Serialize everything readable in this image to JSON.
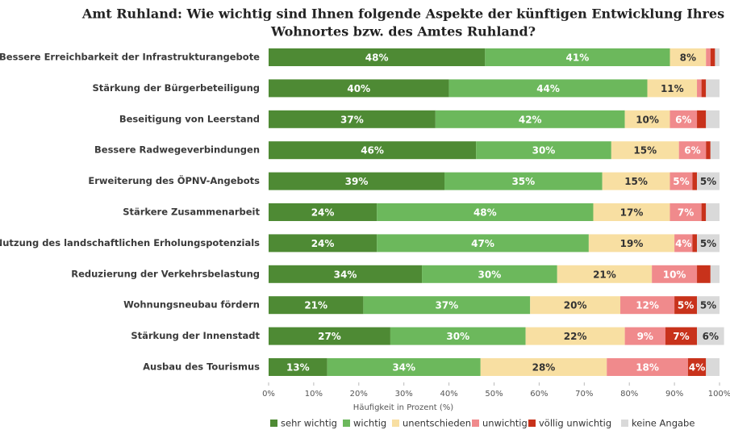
{
  "chart_data": {
    "type": "stacked-bar-horizontal",
    "title": [
      "Amt Ruhland: Wie wichtig sind Ihnen folgende Aspekte der künftigen Entwicklung Ihres",
      "Wohnortes bzw. des Amtes Ruhland?"
    ],
    "xlabel": "Häufigkeit in Prozent (%)",
    "categories": [
      "Bessere Erreichbarkeit der Infrastrukturangebote",
      "Stärkung der Bürgerbeteiligung",
      "Beseitigung von Leerstand",
      "Bessere Radwegeverbindungen",
      "Erweiterung des ÖPNV-Angebots",
      "Stärkere Zusammenarbeit",
      "Bessere Nutzung des landschaftlichen Erholungspotenzials",
      "Reduzierung der Verkehrsbelastung",
      "Wohnungsneubau fördern",
      "Stärkung der Innenstadt",
      "Ausbau des Tourismus"
    ],
    "series": [
      {
        "name": "sehr wichtig",
        "color": "#4e8a34",
        "label_color": "#ffffff",
        "values": [
          48,
          40,
          37,
          46,
          39,
          24,
          24,
          34,
          21,
          27,
          13
        ],
        "value_labels": [
          "48%",
          "40%",
          "37%",
          "46%",
          "39%",
          "24%",
          "24%",
          "34%",
          "21%",
          "27%",
          "13%"
        ]
      },
      {
        "name": "wichtig",
        "color": "#6cb85c",
        "label_color": "#ffffff",
        "values": [
          41,
          44,
          42,
          30,
          35,
          48,
          47,
          30,
          37,
          30,
          34
        ],
        "value_labels": [
          "41%",
          "44%",
          "42%",
          "30%",
          "35%",
          "48%",
          "47%",
          "30%",
          "37%",
          "30%",
          "34%"
        ]
      },
      {
        "name": "unentschieden",
        "color": "#f8dfa2",
        "label_color": "#333333",
        "values": [
          8,
          11,
          10,
          15,
          15,
          17,
          19,
          21,
          20,
          22,
          28
        ],
        "value_labels": [
          "8%",
          "11%",
          "10%",
          "15%",
          "15%",
          "17%",
          "19%",
          "21%",
          "20%",
          "22%",
          "28%"
        ]
      },
      {
        "name": "unwichtig",
        "color": "#f08a8c",
        "label_color": "#ffffff",
        "values": [
          1,
          1,
          6,
          6,
          5,
          7,
          4,
          10,
          12,
          9,
          18
        ],
        "value_labels": [
          null,
          null,
          "6%",
          "6%",
          "5%",
          "7%",
          "4%",
          "10%",
          "12%",
          "9%",
          "18%"
        ]
      },
      {
        "name": "völlig unwichtig",
        "color": "#c8321b",
        "label_color": "#ffffff",
        "values": [
          1,
          1,
          2,
          1,
          1,
          1,
          1,
          3,
          5,
          7,
          4
        ],
        "value_labels": [
          null,
          null,
          null,
          null,
          null,
          null,
          null,
          null,
          "5%",
          "7%",
          "4%"
        ]
      },
      {
        "name": "keine Angabe",
        "color": "#d9d9d9",
        "label_color": "#333333",
        "values": [
          1,
          3,
          3,
          2,
          5,
          3,
          5,
          2,
          5,
          6,
          3
        ],
        "value_labels": [
          null,
          null,
          null,
          null,
          "5%",
          null,
          "5%",
          null,
          "5%",
          "6%",
          null
        ]
      }
    ],
    "xlim": [
      0,
      100
    ],
    "xticks": [
      {
        "value": 0,
        "label": "0%"
      },
      {
        "value": 10,
        "label": "10%"
      },
      {
        "value": 20,
        "label": "20%"
      },
      {
        "value": 30,
        "label": "30%"
      },
      {
        "value": 40,
        "label": "40%"
      },
      {
        "value": 50,
        "label": "50%"
      },
      {
        "value": 60,
        "label": "60%"
      },
      {
        "value": 70,
        "label": "70%"
      },
      {
        "value": 80,
        "label": "80%"
      },
      {
        "value": 90,
        "label": "90%"
      },
      {
        "value": 100,
        "label": "100%"
      }
    ],
    "legend": "bottom"
  }
}
